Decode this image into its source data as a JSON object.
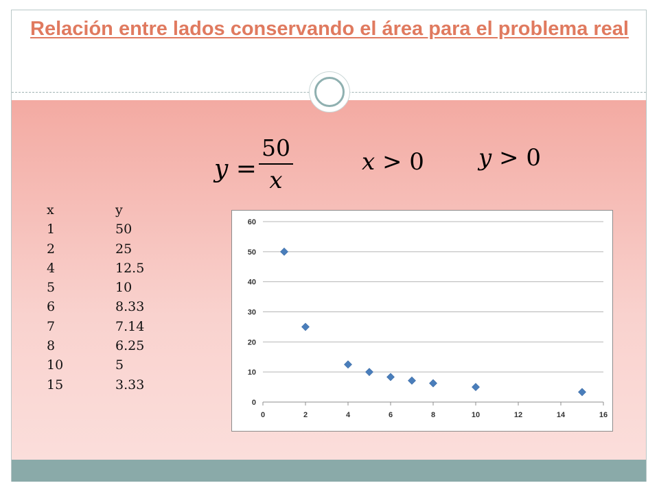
{
  "slide": {
    "title": " Relación entre lados conservando el área para el problema real",
    "equation": {
      "lhs": "y =",
      "numerator": "50",
      "denominator": "x"
    },
    "conditions": [
      {
        "var": "x",
        "rel": " > ",
        "value": "0"
      },
      {
        "var": "y",
        "rel": " > ",
        "value": "0"
      }
    ],
    "colors": {
      "title": "#e07a5f",
      "band": "#f3aaa2",
      "footer": "#8aaaa9",
      "marker": "#4a7ebb"
    }
  },
  "table": {
    "headers": [
      "x",
      "y"
    ],
    "rows": [
      [
        "1",
        "50"
      ],
      [
        "2",
        "25"
      ],
      [
        "4",
        "12.5"
      ],
      [
        "5",
        "10"
      ],
      [
        "6",
        "8.33"
      ],
      [
        "7",
        "7.14"
      ],
      [
        "8",
        "6.25"
      ],
      [
        "10",
        "5"
      ],
      [
        "15",
        "3.33"
      ]
    ]
  },
  "chart_data": {
    "type": "scatter",
    "x": [
      1,
      2,
      4,
      5,
      6,
      7,
      8,
      10,
      15
    ],
    "y": [
      50,
      25,
      12.5,
      10,
      8.33,
      7.14,
      6.25,
      5,
      3.33
    ],
    "xlim": [
      0,
      16
    ],
    "ylim": [
      0,
      60
    ],
    "xticks": [
      0,
      2,
      4,
      6,
      8,
      10,
      12,
      14,
      16
    ],
    "yticks": [
      0,
      10,
      20,
      30,
      40,
      50,
      60
    ],
    "grid": "horizontal",
    "legend": "none",
    "marker": "diamond"
  }
}
